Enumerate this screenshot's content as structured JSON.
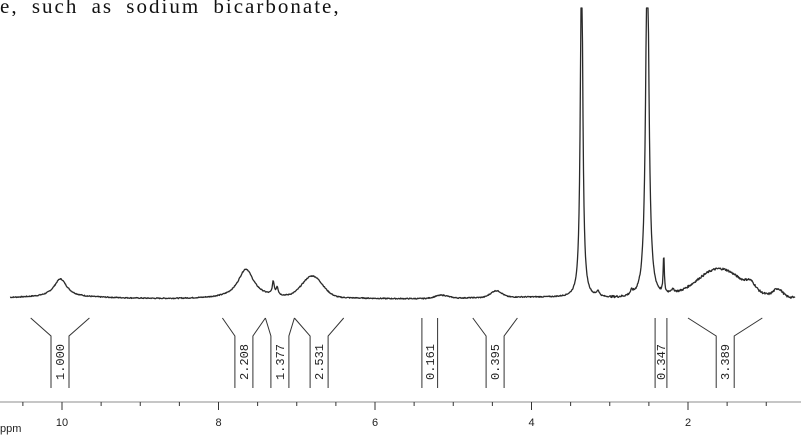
{
  "page": {
    "caption": "e, such as sodium bicarbonate,"
  },
  "chart_data": {
    "type": "line",
    "title": "",
    "xlabel": "ppm",
    "ylabel": "",
    "xlim": [
      11.5,
      -0.5
    ],
    "x_reversed": true,
    "grid": false,
    "ticks": [
      {
        "value": 10,
        "label": "10"
      },
      {
        "value": 8,
        "label": "8"
      },
      {
        "value": 6,
        "label": "6"
      },
      {
        "value": 4,
        "label": "4"
      },
      {
        "value": 2,
        "label": "2"
      }
    ],
    "peaks": [
      {
        "ppm": 10.02,
        "height": 0.07,
        "width": 0.1,
        "shape": "lorentz"
      },
      {
        "ppm": 7.65,
        "height": 0.11,
        "width": 0.12,
        "shape": "lorentz"
      },
      {
        "ppm": 7.3,
        "height": 0.05,
        "width": 0.015,
        "shape": "lorentz"
      },
      {
        "ppm": 7.25,
        "height": 0.03,
        "width": 0.015,
        "shape": "lorentz"
      },
      {
        "ppm": 6.8,
        "height": 0.08,
        "width": 0.18,
        "shape": "gauss"
      },
      {
        "ppm": 5.15,
        "height": 0.012,
        "width": 0.12,
        "shape": "gauss"
      },
      {
        "ppm": 4.45,
        "height": 0.025,
        "width": 0.1,
        "shape": "gauss"
      },
      {
        "ppm": 3.36,
        "height": 1.4,
        "width": 0.018,
        "shape": "lorentz"
      },
      {
        "ppm": 3.15,
        "height": 0.02,
        "width": 0.02,
        "shape": "lorentz"
      },
      {
        "ppm": 2.72,
        "height": 0.015,
        "width": 0.02,
        "shape": "lorentz"
      },
      {
        "ppm": 2.52,
        "height": 1.4,
        "width": 0.025,
        "shape": "lorentz"
      },
      {
        "ppm": 2.31,
        "height": 0.15,
        "width": 0.008,
        "shape": "lorentz"
      },
      {
        "ppm": 2.2,
        "height": 0.015,
        "width": 0.04,
        "shape": "lorentz"
      },
      {
        "ppm": 1.6,
        "height": 0.11,
        "width": 0.4,
        "shape": "gauss"
      },
      {
        "ppm": 1.2,
        "height": 0.025,
        "width": 0.08,
        "shape": "gauss"
      },
      {
        "ppm": 0.85,
        "height": 0.03,
        "width": 0.08,
        "shape": "gauss"
      }
    ],
    "integrals": [
      {
        "value": "1.000",
        "from": 10.4,
        "to": 9.65
      },
      {
        "value": "2.208",
        "from": 7.95,
        "to": 7.4
      },
      {
        "value": "1.377",
        "from": 7.4,
        "to": 7.03
      },
      {
        "value": "2.531",
        "from": 7.03,
        "to": 6.4
      },
      {
        "value": "0.161",
        "from": 5.4,
        "to": 5.2
      },
      {
        "value": "0.395",
        "from": 4.75,
        "to": 4.18
      },
      {
        "value": "0.347",
        "from": 2.42,
        "to": 2.27
      },
      {
        "value": "3.389",
        "from": 2.0,
        "to": 1.05
      }
    ]
  }
}
